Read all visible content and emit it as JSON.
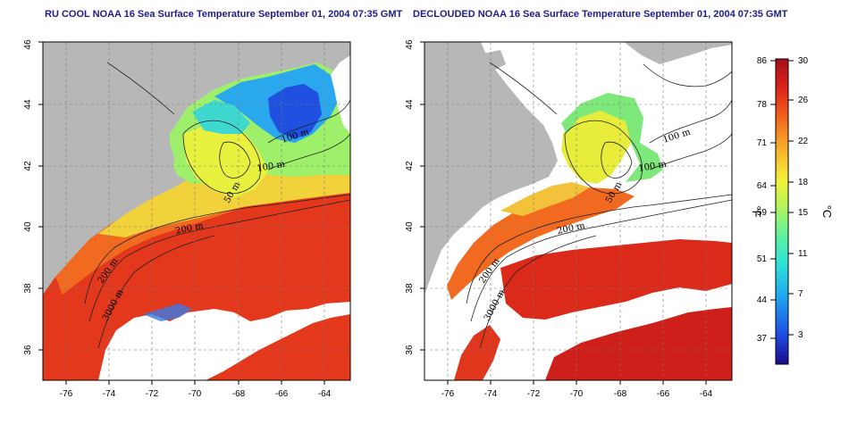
{
  "panels": {
    "left": {
      "title": "RU COOL NOAA 16 Sea Surface Temperature September 01, 2004 07:35 GMT"
    },
    "right": {
      "title": "DECLOUDED NOAA 16 Sea Surface Temperature September 01, 2004 07:35 GMT"
    }
  },
  "axes": {
    "lon_ticks": [
      "-76",
      "-74",
      "-72",
      "-70",
      "-68",
      "-66",
      "-64"
    ],
    "lat_ticks": [
      "36",
      "38",
      "40",
      "42",
      "44",
      "46"
    ]
  },
  "contour_labels": [
    "100 m",
    "100 m",
    "50 m",
    "200 m",
    "200 m",
    "3000 m"
  ],
  "colorbar": {
    "fahrenheit_ticks": [
      "86",
      "78",
      "71",
      "64",
      "59",
      "51",
      "44",
      "37"
    ],
    "celsius_ticks": [
      "30",
      "26",
      "22",
      "18",
      "15",
      "11",
      "7",
      "3"
    ],
    "fahrenheit_unit": "°F",
    "celsius_unit": "°C",
    "colors": [
      "#1a0a8c",
      "#1f4fe6",
      "#1fa5f0",
      "#2fe3d9",
      "#5ef2a0",
      "#b6f55a",
      "#f4f23a",
      "#f7b42b",
      "#f36a1e",
      "#e0241a",
      "#a3101a"
    ]
  },
  "colors": {
    "land": "#b7b7b7",
    "cloud": "#ffffff",
    "title": "#1c1c8c"
  }
}
